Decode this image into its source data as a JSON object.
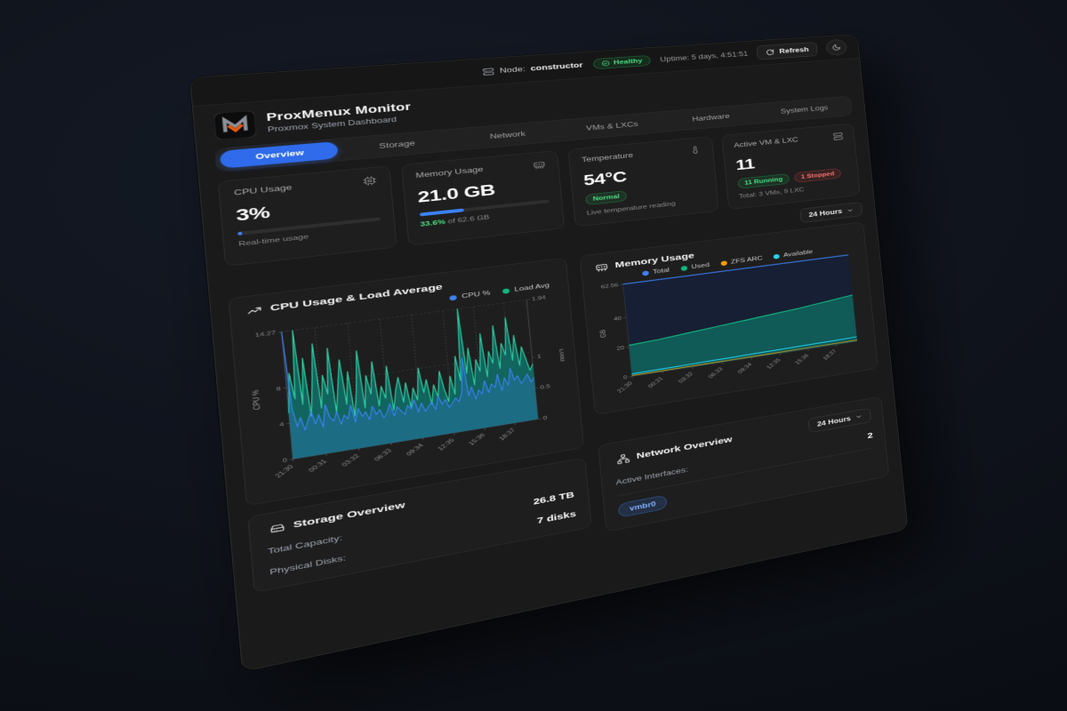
{
  "topbar": {
    "node_label": "Node:",
    "node_value": "constructor",
    "health": "Healthy",
    "uptime": "Uptime: 5 days, 4:51:51",
    "refresh": "Refresh"
  },
  "header": {
    "title": "ProxMenux Monitor",
    "subtitle": "Proxmox System Dashboard"
  },
  "tabs": [
    {
      "label": "Overview",
      "active": true
    },
    {
      "label": "Storage",
      "active": false
    },
    {
      "label": "Network",
      "active": false
    },
    {
      "label": "VMs & LXCs",
      "active": false
    },
    {
      "label": "Hardware",
      "active": false
    },
    {
      "label": "System Logs",
      "active": false
    }
  ],
  "stats": {
    "cpu": {
      "label": "CPU Usage",
      "value": "3%",
      "percent": 3,
      "caption": "Real-time usage"
    },
    "memory": {
      "label": "Memory Usage",
      "value": "21.0 GB",
      "percent": 33.6,
      "caption_highlight": "33.6%",
      "caption_rest": " of 62.6 GB"
    },
    "temperature": {
      "label": "Temperature",
      "value": "54°C",
      "badge": "Normal",
      "caption": "Live temperature reading"
    },
    "vms": {
      "label": "Active VM & LXC",
      "value": "11",
      "running": "11 Running",
      "stopped": "1 Stopped",
      "caption": "Total: 3 VMs, 9 LXC"
    }
  },
  "time_selector": {
    "label": "24 Hours"
  },
  "storage": {
    "title": "Storage Overview",
    "rows": [
      {
        "label": "Total Capacity:",
        "value": "26.8 TB"
      },
      {
        "label": "Physical Disks:",
        "value": "7 disks"
      }
    ]
  },
  "network": {
    "title": "Network Overview",
    "time_range": "24 Hours",
    "rows": [
      {
        "label": "Active Interfaces:",
        "value": "2"
      }
    ],
    "interfaces": [
      "vmbr0"
    ]
  },
  "colors": {
    "accent_blue": "#3b82f6",
    "tab_blue": "#2f6bea",
    "green": "#22c55e",
    "red": "#ef4444",
    "teal_fill": "#0f766e",
    "cyan": "#22d3ee",
    "orange": "#f59e0b"
  },
  "chart_data": [
    {
      "type": "line",
      "title": "CPU Usage & Load Average",
      "x_labels": [
        "21:30",
        "00:31",
        "03:32",
        "06:33",
        "09:34",
        "12:35",
        "15:36",
        "18:37"
      ],
      "y_left": {
        "label": "CPU %",
        "ticks": [
          0,
          4,
          8
        ],
        "max": 14.27
      },
      "y_right": {
        "label": "Load",
        "ticks": [
          0,
          0.5,
          1
        ],
        "max": 1.94
      },
      "legend": [
        {
          "name": "CPU %",
          "color": "#3b82f6"
        },
        {
          "name": "Load Avg",
          "color": "#10b981"
        }
      ],
      "series": [
        {
          "name": "Load Avg",
          "axis": "right",
          "color": "#2fd3a5",
          "w": 1.3,
          "fill": "rgba(15,118,110,0.8)",
          "values": [
            0.7,
            1.3,
            0.9,
            1.94,
            0.8,
            1.5,
            0.6,
            1.1,
            1.7,
            0.7,
            1.2,
            0.9,
            1.6,
            0.6,
            1.0,
            1.4,
            0.7,
            1.2,
            0.5,
            0.9,
            1.5,
            0.6,
            1.1,
            0.8,
            1.3,
            0.6,
            0.9,
            0.7,
            1.2,
            0.5,
            0.8,
            1.0,
            0.6,
            0.9,
            0.5,
            0.8,
            0.6,
            1.1,
            0.7,
            0.9,
            0.5,
            0.8,
            0.6,
            1.0,
            0.7,
            0.5,
            0.9,
            0.6,
            1.2,
            0.8,
            1.94,
            0.9,
            1.3,
            0.7,
            1.1,
            0.9,
            1.5,
            0.8,
            1.2,
            1.0,
            1.6,
            0.9,
            1.3,
            1.1,
            1.7,
            1.0,
            1.4,
            0.9,
            1.2,
            1.0,
            0.8,
            0.9
          ]
        },
        {
          "name": "CPU %",
          "axis": "left",
          "color": "#3b82f6",
          "w": 1.3,
          "fill": "rgba(59,130,246,0.25)",
          "values": [
            14.27,
            5.5,
            3.5,
            4.5,
            3,
            4,
            5,
            3.5,
            4.5,
            3,
            5.5,
            4,
            3.5,
            4.5,
            3,
            4,
            3.5,
            5,
            3,
            4.5,
            3.5,
            4,
            3,
            4.5,
            3.5,
            4,
            3,
            3.5,
            4.5,
            3,
            4,
            3.5,
            3,
            4,
            3.5,
            4.5,
            3,
            4,
            3,
            3.5,
            4,
            3,
            4.5,
            3.5,
            4,
            3,
            3.5,
            4,
            3.5,
            4.5,
            8.5,
            4,
            5,
            3.5,
            4.5,
            4,
            5.5,
            4,
            5,
            4.5,
            6,
            4,
            5.5,
            4.5,
            6.5,
            5,
            5.5,
            4.5,
            5,
            5.5,
            4.5,
            5
          ]
        }
      ]
    },
    {
      "type": "area",
      "title": "Memory Usage",
      "x_labels": [
        "21:30",
        "00:31",
        "03:32",
        "06:33",
        "09:34",
        "12:35",
        "15:36",
        "18:37"
      ],
      "y_left": {
        "label": "GB",
        "ticks": [
          0,
          20,
          40
        ],
        "max": 62.56
      },
      "y_right": null,
      "legend": [
        {
          "name": "Total",
          "color": "#3b82f6"
        },
        {
          "name": "Used",
          "color": "#10b981"
        },
        {
          "name": "ZFS ARC",
          "color": "#f59e0b"
        },
        {
          "name": "Available",
          "color": "#22d3ee"
        }
      ],
      "series": [
        {
          "name": "Total",
          "axis": "left",
          "color": "#3b82f6",
          "w": 2,
          "fill": "rgba(23,32,54,0.95)",
          "values": [
            62.56,
            62.56,
            62.56,
            62.56,
            62.56,
            62.56,
            62.56,
            62.56,
            62.56
          ]
        },
        {
          "name": "Used",
          "axis": "left",
          "color": "#10b981",
          "w": 2,
          "fill": "rgba(16,96,91,0.9)",
          "values": [
            21,
            22,
            23.5,
            25,
            26.5,
            28,
            29.5,
            31.5,
            33.5
          ]
        },
        {
          "name": "ZFS ARC",
          "axis": "left",
          "color": "#f59e0b",
          "w": 1.2,
          "fill": "none",
          "values": [
            0.5,
            0.5,
            0.6,
            0.6,
            0.7,
            0.7,
            0.8,
            0.8,
            0.9
          ]
        },
        {
          "name": "Available",
          "axis": "left",
          "color": "#22d3ee",
          "w": 1.8,
          "fill": "none",
          "values": [
            1.6,
            1.8,
            2.0,
            2.2,
            2.4,
            2.6,
            2.8,
            3.0,
            3.2
          ]
        }
      ]
    }
  ]
}
